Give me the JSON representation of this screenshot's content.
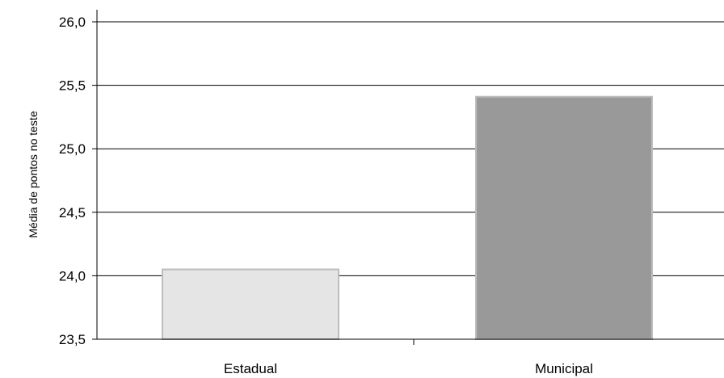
{
  "chart_data": {
    "type": "bar",
    "categories": [
      "Estadual",
      "Municipal"
    ],
    "values": [
      24.05,
      25.41
    ],
    "title": "",
    "xlabel": "",
    "ylabel": "Média de pontos  no teste",
    "ylim": [
      23.5,
      26.0
    ],
    "y_ticks": [
      "23,5",
      "24,0",
      "24,5",
      "25,0",
      "25,5",
      "26,0"
    ],
    "grid": true,
    "legend": "none",
    "colors": {
      "bars": [
        "#e5e5e5",
        "#999999"
      ],
      "bar_outline": "#bdbdbd",
      "grid": "#000000",
      "axis": "#000000"
    }
  }
}
